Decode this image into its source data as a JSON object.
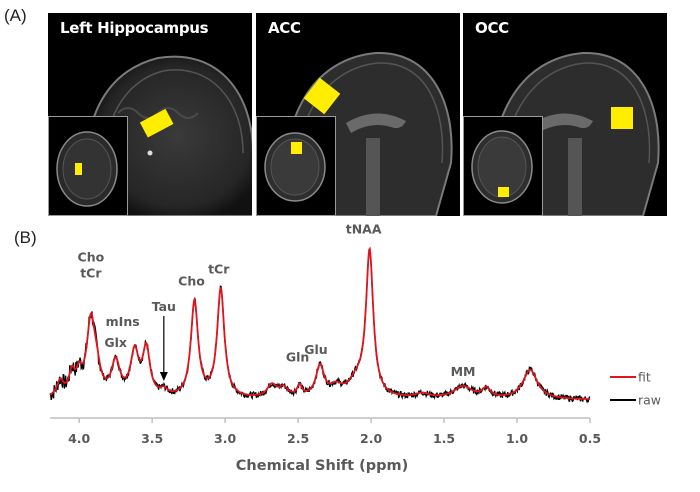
{
  "figure": {
    "panel_a_label": "(A)",
    "panel_b_label": "(B)",
    "mri_panels": [
      {
        "title": "Left Hippocampus",
        "voxel_color": "#ffee00"
      },
      {
        "title": "ACC",
        "voxel_color": "#ffee00"
      },
      {
        "title": "OCC",
        "voxel_color": "#ffee00"
      }
    ]
  },
  "chart_data": {
    "type": "line",
    "title": "",
    "xlabel": "Chemical Shift (ppm)",
    "ylabel": "",
    "xlim": [
      4.2,
      0.5
    ],
    "x_reversed": true,
    "ylim": [
      0,
      1
    ],
    "grid": false,
    "x_ticks": [
      "4.0",
      "3.5",
      "3.0",
      "2.5",
      "2.0",
      "1.5",
      "1.0",
      "0.5"
    ],
    "x_tick_values": [
      4.0,
      3.5,
      3.0,
      2.5,
      2.0,
      1.5,
      1.0,
      0.5
    ],
    "legend": {
      "placement": "right",
      "entries": [
        {
          "name": "fit",
          "color": "#e0141e"
        },
        {
          "name": "raw",
          "color": "#000000"
        }
      ]
    },
    "peaks": [
      {
        "ppm": 4.13,
        "amp": 0.1,
        "width": 0.03
      },
      {
        "ppm": 4.05,
        "amp": 0.14,
        "width": 0.025
      },
      {
        "ppm": 4.0,
        "amp": 0.12,
        "width": 0.025
      },
      {
        "ppm": 3.92,
        "amp": 0.48,
        "width": 0.035
      },
      {
        "ppm": 3.88,
        "amp": 0.12,
        "width": 0.03
      },
      {
        "ppm": 3.75,
        "amp": 0.22,
        "width": 0.035
      },
      {
        "ppm": 3.62,
        "amp": 0.28,
        "width": 0.035
      },
      {
        "ppm": 3.54,
        "amp": 0.3,
        "width": 0.03
      },
      {
        "ppm": 3.42,
        "amp": 0.04,
        "width": 0.03
      },
      {
        "ppm": 3.21,
        "amp": 0.62,
        "width": 0.03
      },
      {
        "ppm": 3.03,
        "amp": 0.7,
        "width": 0.03
      },
      {
        "ppm": 2.68,
        "amp": 0.08,
        "width": 0.04
      },
      {
        "ppm": 2.6,
        "amp": 0.06,
        "width": 0.04
      },
      {
        "ppm": 2.49,
        "amp": 0.07,
        "width": 0.02
      },
      {
        "ppm": 2.35,
        "amp": 0.2,
        "width": 0.035
      },
      {
        "ppm": 2.24,
        "amp": 0.06,
        "width": 0.05
      },
      {
        "ppm": 2.1,
        "amp": 0.1,
        "width": 0.07
      },
      {
        "ppm": 2.01,
        "amp": 0.93,
        "width": 0.03
      },
      {
        "ppm": 1.65,
        "amp": 0.03,
        "width": 0.06
      },
      {
        "ppm": 1.37,
        "amp": 0.08,
        "width": 0.08
      },
      {
        "ppm": 1.21,
        "amp": 0.06,
        "width": 0.035
      },
      {
        "ppm": 0.91,
        "amp": 0.19,
        "width": 0.06
      }
    ],
    "annotations": [
      {
        "text": "Cho",
        "ppm": 3.92,
        "line": 1
      },
      {
        "text": "tCr",
        "ppm": 3.92,
        "line": 2
      },
      {
        "text": "Glx",
        "ppm": 3.75,
        "line": 0
      },
      {
        "text": "mIns",
        "ppm": 3.62,
        "line": 0
      },
      {
        "text": "Tau",
        "ppm": 3.42,
        "line": 0,
        "arrow": true
      },
      {
        "text": "Cho",
        "ppm": 3.21,
        "line": 0
      },
      {
        "text": "tCr",
        "ppm": 3.03,
        "line": 0
      },
      {
        "text": "Gln",
        "ppm": 2.49,
        "line": 0
      },
      {
        "text": "Glu",
        "ppm": 2.35,
        "line": 0
      },
      {
        "text": "tNAA",
        "ppm": 2.01,
        "line": 0
      },
      {
        "text": "MM",
        "ppm": 1.37,
        "line": 0
      }
    ]
  }
}
